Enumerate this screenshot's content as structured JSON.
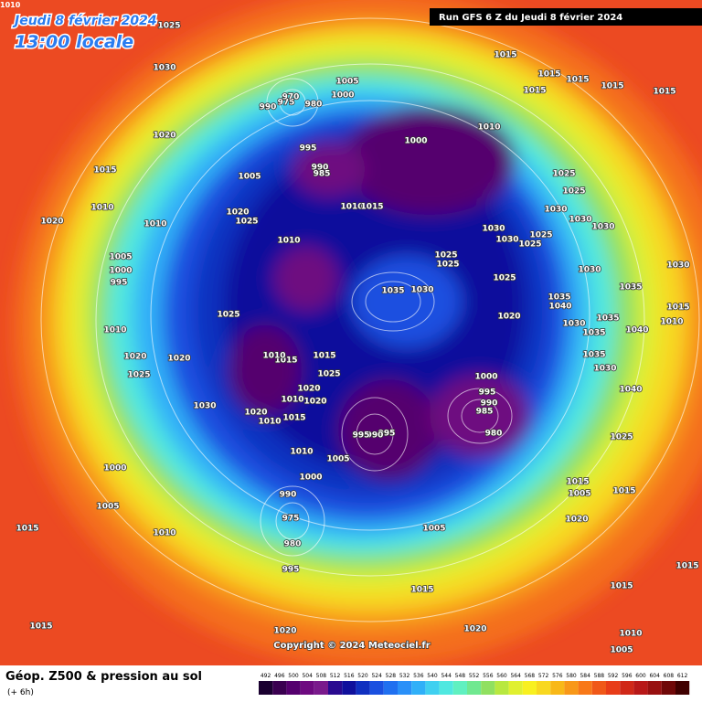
{
  "header": {
    "date": "Jeudi 8 février 2024",
    "time": "13:00 locale",
    "run": "Run GFS 6 Z du Jeudi 8 février 2024",
    "corner": "1010",
    "copyright": "Copyright © 2024 Meteociel.fr"
  },
  "footer": {
    "title": "Géop. Z500 & pression au sol",
    "step": "(+ 6h)"
  },
  "color_scale": {
    "values": [
      492,
      496,
      500,
      504,
      508,
      512,
      516,
      520,
      524,
      528,
      532,
      536,
      540,
      544,
      548,
      552,
      556,
      560,
      564,
      568,
      572,
      576,
      580,
      584,
      588,
      592,
      596,
      600,
      604,
      608,
      612
    ],
    "colors": [
      "#1a0030",
      "#3a0050",
      "#55006e",
      "#6e0a80",
      "#7a1a8c",
      "#2a0a90",
      "#10109c",
      "#1030c0",
      "#1a50e0",
      "#2070f0",
      "#2a90f8",
      "#30b0f8",
      "#40d0f0",
      "#50e8e0",
      "#60f0c0",
      "#70e890",
      "#90e060",
      "#b8e840",
      "#e0f030",
      "#f8f020",
      "#f8d820",
      "#f8b818",
      "#f89818",
      "#f87818",
      "#f05818",
      "#e83c18",
      "#d02818",
      "#b81818",
      "#981010",
      "#700808",
      "#400000"
    ]
  },
  "isobar_labels": [
    "1025",
    "1030",
    "1020",
    "1015",
    "1010",
    "1020",
    "1010",
    "1005",
    "1000",
    "995",
    "1010",
    "1020",
    "1025",
    "1020",
    "1030",
    "1000",
    "1005",
    "1015",
    "1010",
    "1015",
    "1020",
    "1020",
    "1005",
    "1010",
    "1015",
    "1015",
    "1015",
    "1005",
    "995",
    "980",
    "975",
    "990",
    "1000",
    "1010",
    "1005",
    "1015",
    "1010",
    "1020",
    "1020",
    "1025",
    "1015",
    "1020",
    "1025",
    "1015",
    "1010",
    "1010",
    "1010",
    "1020",
    "1025",
    "1005",
    "995",
    "990",
    "985",
    "1010",
    "1015",
    "1000",
    "1005",
    "1000",
    "980",
    "975",
    "970",
    "990",
    "1010",
    "1015",
    "1015",
    "1015",
    "1015",
    "1015",
    "1015",
    "1025",
    "1025",
    "1030",
    "1030",
    "1030",
    "1030",
    "1030",
    "1025",
    "1025",
    "1025",
    "1025",
    "1025",
    "1030",
    "1035",
    "1030",
    "1020",
    "1035",
    "1040",
    "1030",
    "1035",
    "1035",
    "1035",
    "1040",
    "1030",
    "1015",
    "1010",
    "1035",
    "1030",
    "1040",
    "1025",
    "1015",
    "1005",
    "1015",
    "1020",
    "1000",
    "995",
    "990",
    "985",
    "980",
    "995",
    "990",
    "995"
  ]
}
